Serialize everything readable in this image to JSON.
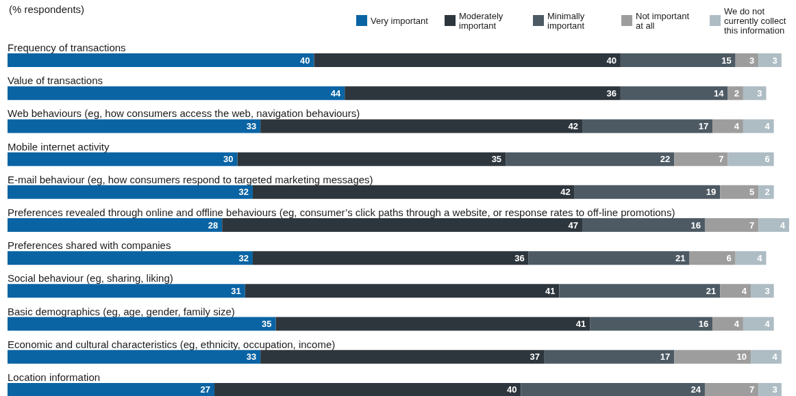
{
  "chart_data": {
    "type": "bar",
    "orientation": "horizontal",
    "stacked": true,
    "title": "(% respondents)",
    "categories": [
      "Frequency of transactions",
      "Value of transactions",
      "Web behaviours (eg, how consumers access the web, navigation behaviours)",
      "Mobile internet activity",
      "E-mail behaviour (eg, how consumers respond to targeted marketing messages)",
      "Preferences revealed through online and offline behaviours (eg, consumer’s click paths through a website, or response rates to off-line promotions)",
      "Preferences shared with companies",
      "Social behaviour (eg, sharing, liking)",
      "Basic demographics (eg, age, gender, family size)",
      "Economic and cultural characteristics (eg, ethnicity, occupation, income)",
      "Location information"
    ],
    "series": [
      {
        "name": "Very important",
        "color": "#0a64a4",
        "values": [
          40,
          44,
          33,
          30,
          32,
          28,
          32,
          31,
          35,
          33,
          27
        ]
      },
      {
        "name": "Moderately important",
        "color": "#2e363d",
        "values": [
          40,
          36,
          42,
          35,
          42,
          47,
          36,
          41,
          41,
          37,
          40
        ]
      },
      {
        "name": "Minimally important",
        "color": "#4d5a64",
        "values": [
          15,
          14,
          17,
          22,
          19,
          16,
          21,
          21,
          16,
          17,
          24
        ]
      },
      {
        "name": "Not important at all",
        "color": "#9d9d9e",
        "values": [
          3,
          2,
          4,
          7,
          5,
          7,
          6,
          4,
          4,
          10,
          7
        ]
      },
      {
        "name": "We do not currently collect this information",
        "color": "#aebcc4",
        "values": [
          3,
          3,
          4,
          6,
          2,
          4,
          4,
          3,
          4,
          4,
          3
        ]
      }
    ],
    "data_labels": true,
    "legend": "top right",
    "tick_labels": "y"
  }
}
